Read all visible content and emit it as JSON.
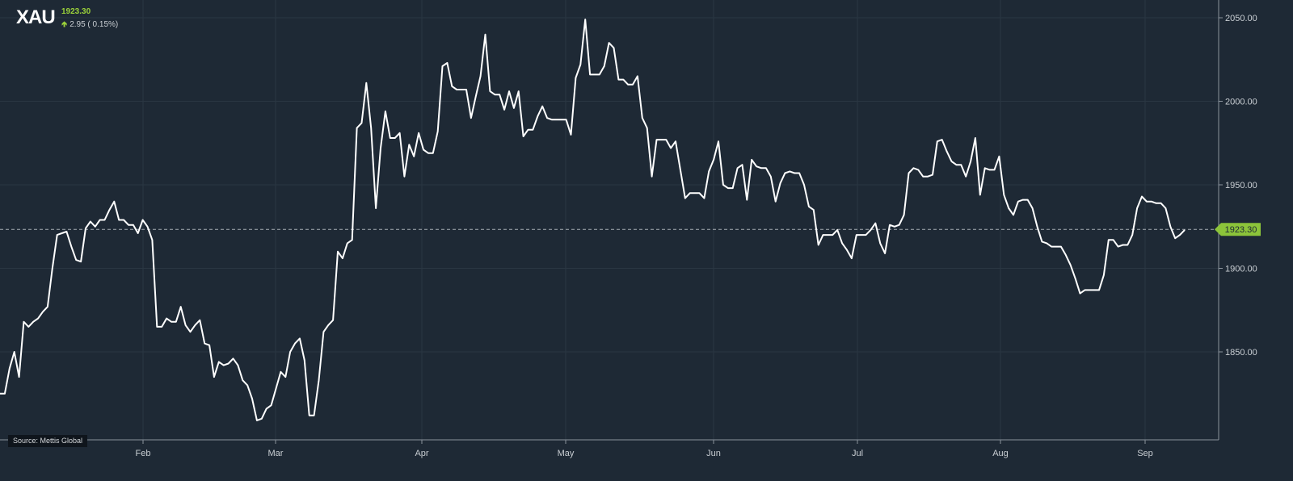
{
  "header": {
    "symbol": "XAU",
    "last_price": "1923.30",
    "change": "2.95 ( 0.15%)",
    "change_direction_icon": "up-arrow-icon"
  },
  "source_label": "Source: Mettis Global",
  "colors": {
    "background": "#1e2935",
    "line": "#ffffff",
    "grid": "#2a3642",
    "up": "#9bd13a",
    "price_tag": "#8cc43a"
  },
  "chart_data": {
    "type": "line",
    "title": "",
    "xlabel": "",
    "ylabel": "",
    "x_ticks": [
      "Feb",
      "Mar",
      "Apr",
      "May",
      "Jun",
      "Jul",
      "Aug",
      "Sep"
    ],
    "y_ticks": [
      2050,
      2000,
      1950,
      1900,
      1850
    ],
    "y_tick_labels": [
      "2050.00",
      "2000.00",
      "1950.00",
      "1900.00",
      "1850.00"
    ],
    "ylim": [
      1800,
      2055
    ],
    "grid": true,
    "axis_position": "right",
    "last_price": 1923.3,
    "last_price_label": "1923.30",
    "series": [
      {
        "values": [
          1825,
          1825,
          1840,
          1850,
          1835,
          1868,
          1865,
          1868,
          1870,
          1874,
          1877,
          1900,
          1920,
          1921,
          1922,
          1913,
          1905,
          1904,
          1924,
          1928,
          1925,
          1929,
          1929,
          1935,
          1940,
          1929,
          1929,
          1926,
          1926,
          1921,
          1929,
          1925,
          1917,
          1865,
          1865,
          1870,
          1868,
          1868,
          1877,
          1866,
          1862,
          1866,
          1869,
          1855,
          1854,
          1835,
          1844,
          1842,
          1843,
          1846,
          1842,
          1833,
          1830,
          1822,
          1809,
          1810,
          1816,
          1818,
          1828,
          1838,
          1835,
          1850,
          1855,
          1858,
          1845,
          1812,
          1812,
          1833,
          1862,
          1866,
          1869,
          1910,
          1906,
          1915,
          1917,
          1984,
          1987,
          2011,
          1984,
          1936,
          1972,
          1994,
          1978,
          1978,
          1981,
          1955,
          1974,
          1967,
          1981,
          1971,
          1969,
          1969,
          1982,
          2021,
          2023,
          2009,
          2007,
          2007,
          2007,
          1990,
          2003,
          2015,
          2040,
          2006,
          2004,
          2004,
          1995,
          2006,
          1996,
          2006,
          1979,
          1983,
          1983,
          1991,
          1997,
          1990,
          1989,
          1989,
          1989,
          1989,
          1980,
          2014,
          2022,
          2049,
          2016,
          2016,
          2016,
          2021,
          2035,
          2032,
          2013,
          2013,
          2010,
          2010,
          2015,
          1990,
          1984,
          1955,
          1977,
          1977,
          1977,
          1972,
          1976,
          1959,
          1942,
          1945,
          1945,
          1945,
          1942,
          1958,
          1965,
          1976,
          1950,
          1948,
          1948,
          1960,
          1962,
          1941,
          1965,
          1961,
          1960,
          1960,
          1955,
          1940,
          1951,
          1957,
          1958,
          1957,
          1957,
          1950,
          1937,
          1935,
          1914,
          1920,
          1920,
          1920,
          1923,
          1915,
          1911,
          1906,
          1920,
          1920,
          1920,
          1923,
          1927,
          1915,
          1909,
          1926,
          1925,
          1926,
          1932,
          1957,
          1960,
          1959,
          1955,
          1955,
          1956,
          1976,
          1977,
          1970,
          1964,
          1962,
          1962,
          1955,
          1964,
          1978,
          1944,
          1960,
          1959,
          1959,
          1967,
          1944,
          1936,
          1932,
          1940,
          1941,
          1941,
          1936,
          1925,
          1916,
          1915,
          1913,
          1913,
          1913,
          1908,
          1902,
          1894,
          1885,
          1887,
          1887,
          1887,
          1887,
          1896,
          1917,
          1917,
          1913,
          1914,
          1914,
          1920,
          1936,
          1943,
          1940,
          1940,
          1939,
          1939,
          1936,
          1925,
          1918,
          1920,
          1923
        ]
      }
    ]
  }
}
